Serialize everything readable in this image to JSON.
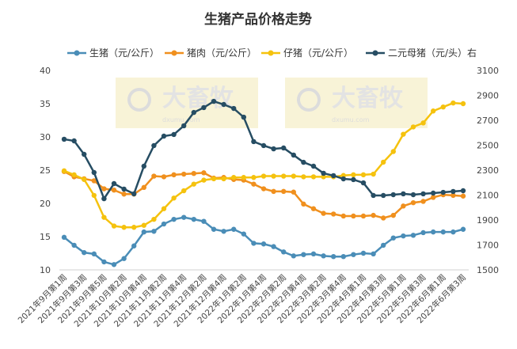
{
  "chart_data": {
    "type": "line",
    "title": "生猪产品价格走势",
    "watermark": "大畜牧",
    "watermark_site": "dxumu.com",
    "categories": [
      "2021年9月第1周",
      null,
      "2021年9月第3周",
      null,
      "2021年9月第5周",
      null,
      "2021年10月第2周",
      null,
      "2021年10月第4周",
      null,
      "2021年11月第2周",
      null,
      "2021年11月第4周",
      null,
      "2021年12月第2周",
      null,
      "2021年12月第4周",
      null,
      "2022年1月第2周",
      null,
      "2022年1月第4周",
      null,
      "2022年2月第2周",
      null,
      "2022年2月第4周",
      null,
      "2022年3月第2周",
      null,
      "2022年3月第4周",
      null,
      "2022年4月第1周",
      null,
      "2022年4月第3周",
      null,
      "2022年5月第1周",
      null,
      "2022年5月第3周",
      null,
      "2022年6月第1周",
      null,
      "2022年6月第3周"
    ],
    "series": [
      {
        "name": "生猪（元/公斤）",
        "color": "#4a8db7",
        "values": [
          14.9,
          13.7,
          12.6,
          12.4,
          11.2,
          10.8,
          11.7,
          13.6,
          15.7,
          15.8,
          16.9,
          17.6,
          17.9,
          17.6,
          17.3,
          16.1,
          15.8,
          16.1,
          15.4,
          14.0,
          13.9,
          13.5,
          12.7,
          12.1,
          12.3,
          12.4,
          12.1,
          12.0,
          12.0,
          12.3,
          12.5,
          12.4,
          13.7,
          14.8,
          15.1,
          15.2,
          15.6,
          15.7,
          15.7,
          15.7,
          16.1
        ]
      },
      {
        "name": "猪肉（元/公斤）",
        "color": "#f0901e",
        "values": [
          24.8,
          24.0,
          23.7,
          23.4,
          22.2,
          22.0,
          21.4,
          21.4,
          22.4,
          24.1,
          24.0,
          24.3,
          24.4,
          24.5,
          24.6,
          23.8,
          23.9,
          23.6,
          23.5,
          22.9,
          22.2,
          21.8,
          21.8,
          21.7,
          19.9,
          19.2,
          18.5,
          18.4,
          18.1,
          18.1,
          18.1,
          18.2,
          17.8,
          18.2,
          19.6,
          20.1,
          20.3,
          20.9,
          21.3,
          21.2,
          21.1
        ]
      },
      {
        "name": "仔猪（元/公斤）",
        "color": "#f5c20e",
        "values": [
          24.9,
          24.3,
          23.6,
          21.2,
          17.9,
          16.6,
          16.4,
          16.4,
          16.7,
          17.6,
          19.2,
          20.8,
          21.9,
          22.9,
          23.5,
          23.7,
          23.7,
          23.9,
          23.9,
          23.9,
          24.1,
          24.1,
          24.1,
          24.1,
          24.0,
          24.0,
          24.0,
          24.0,
          24.2,
          24.3,
          24.3,
          24.4,
          26.2,
          27.8,
          30.4,
          31.5,
          32.1,
          33.9,
          34.5,
          35.1,
          35.0
        ]
      },
      {
        "name": "二元母猪（元/头）右",
        "color": "#264d63",
        "axis": "y2",
        "values": [
          2548,
          2535,
          2427,
          2281,
          2071,
          2192,
          2148,
          2110,
          2332,
          2497,
          2573,
          2586,
          2656,
          2763,
          2802,
          2852,
          2827,
          2795,
          2725,
          2529,
          2497,
          2471,
          2478,
          2421,
          2363,
          2332,
          2275,
          2256,
          2230,
          2224,
          2198,
          2097,
          2097,
          2103,
          2110,
          2103,
          2110,
          2116,
          2122,
          2129,
          2135
        ]
      }
    ],
    "ylim": [
      10,
      40
    ],
    "yticks": [
      10,
      15,
      20,
      25,
      30,
      35,
      40
    ],
    "y2lim": [
      1500,
      3100
    ],
    "y2ticks": [
      1500,
      1700,
      1900,
      2100,
      2300,
      2500,
      2700,
      2900,
      3100
    ],
    "grid": false
  }
}
